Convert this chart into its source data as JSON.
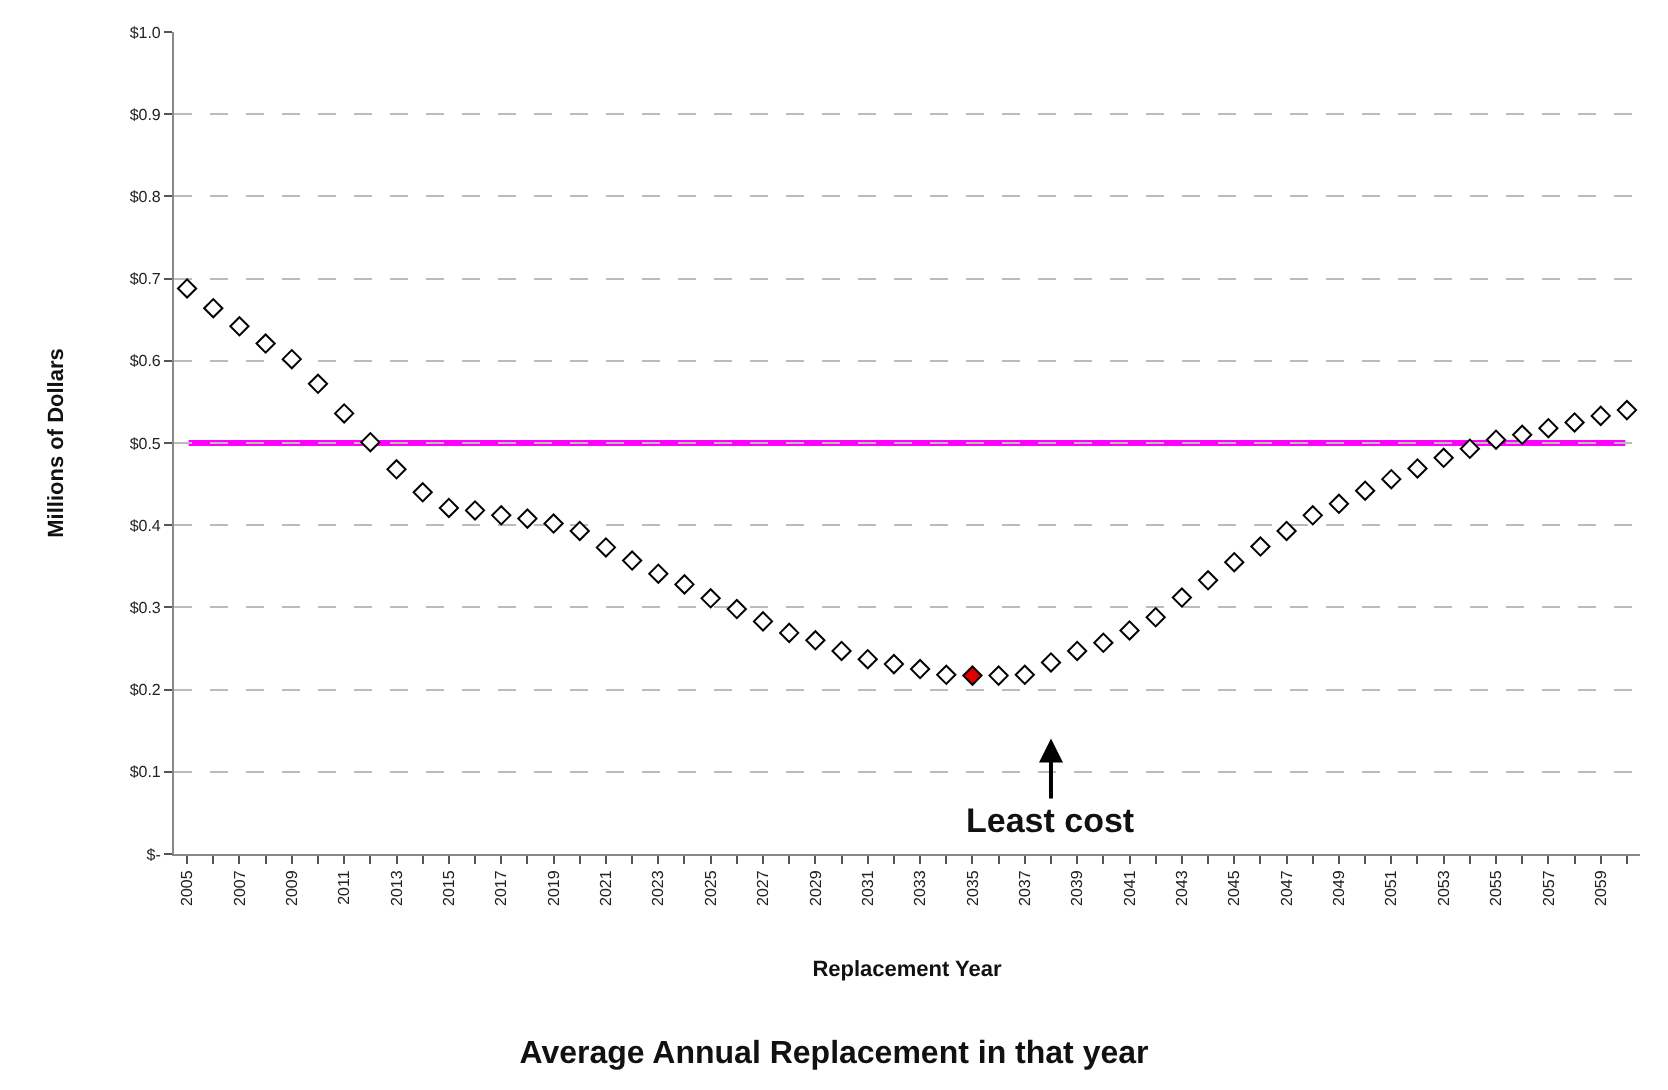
{
  "chart_data": {
    "type": "scatter",
    "title": "Average Annual Replacement in that year",
    "xlabel": "Replacement Year",
    "ylabel": "Millions of Dollars",
    "x": [
      2005,
      2006,
      2007,
      2008,
      2009,
      2010,
      2011,
      2012,
      2013,
      2014,
      2015,
      2016,
      2017,
      2018,
      2019,
      2020,
      2021,
      2022,
      2023,
      2024,
      2025,
      2026,
      2027,
      2028,
      2029,
      2030,
      2031,
      2032,
      2033,
      2034,
      2035,
      2036,
      2037,
      2038,
      2039,
      2040,
      2041,
      2042,
      2043,
      2044,
      2045,
      2046,
      2047,
      2048,
      2049,
      2050,
      2051,
      2052,
      2053,
      2054,
      2055,
      2056,
      2057,
      2058,
      2059,
      2060
    ],
    "series": [
      {
        "color": "#000000",
        "values": [
          0.688,
          0.664,
          0.642,
          0.621,
          0.602,
          0.572,
          0.536,
          0.501,
          0.468,
          0.44,
          0.421,
          0.418,
          0.412,
          0.408,
          0.402,
          0.393,
          0.373,
          0.357,
          0.341,
          0.328,
          0.311,
          0.298,
          0.283,
          0.269,
          0.26,
          0.247,
          0.237,
          0.231,
          0.225,
          0.218,
          0.217,
          0.217,
          0.218,
          0.233,
          0.247,
          0.257,
          0.272,
          0.288,
          0.312,
          0.333,
          0.355,
          0.374,
          0.393,
          0.412,
          0.426,
          0.442,
          0.456,
          0.469,
          0.482,
          0.493,
          0.504,
          0.51,
          0.518,
          0.525,
          0.533,
          0.54
        ],
        "colors": [
          "#ffffff",
          "#ffffff",
          "#ffffff",
          "#ffffff",
          "#ffffff",
          "#ffffff",
          "#ffffff",
          "#ffffff",
          "#ffffff",
          "#ffffff",
          "#ffffff",
          "#ffffff",
          "#ffffff",
          "#ffffff",
          "#ffffff",
          "#ffffff",
          "#ffffff",
          "#ffffff",
          "#ffffff",
          "#ffffff",
          "#ffffff",
          "#ffffff",
          "#ffffff",
          "#ffffff",
          "#ffffff",
          "#ffffff",
          "#ffffff",
          "#ffffff",
          "#ffffff",
          "#ffffff",
          "#e00000",
          "#ffffff",
          "#ffffff",
          "#ffffff",
          "#ffffff",
          "#ffffff",
          "#ffffff",
          "#ffffff",
          "#ffffff",
          "#ffffff",
          "#ffffff",
          "#ffffff",
          "#ffffff",
          "#ffffff",
          "#ffffff",
          "#ffffff",
          "#ffffff",
          "#ffffff",
          "#ffffff",
          "#ffffff",
          "#ffffff",
          "#ffffff",
          "#ffffff",
          "#ffffff",
          "#ffffff",
          "#ffffff"
        ]
      }
    ],
    "marker": "diamond",
    "ref_lines": [
      {
        "axis": "y",
        "value": 0.5,
        "color": "#ff00ff"
      }
    ],
    "annotations": [
      {
        "text": "Least cost",
        "x": 2038,
        "y": 0.233
      }
    ],
    "xlim": [
      2004.5,
      2060.5
    ],
    "xticks": [
      2005,
      {
        "value": 2006,
        "label": null
      },
      2007,
      {
        "value": 2008,
        "label": null
      },
      2009,
      {
        "value": 2010,
        "label": null
      },
      2011,
      {
        "value": 2012,
        "label": null
      },
      2013,
      {
        "value": 2014,
        "label": null
      },
      2015,
      {
        "value": 2016,
        "label": null
      },
      2017,
      {
        "value": 2018,
        "label": null
      },
      2019,
      {
        "value": 2020,
        "label": null
      },
      2021,
      {
        "value": 2022,
        "label": null
      },
      2023,
      {
        "value": 2024,
        "label": null
      },
      2025,
      {
        "value": 2026,
        "label": null
      },
      2027,
      {
        "value": 2028,
        "label": null
      },
      2029,
      {
        "value": 2030,
        "label": null
      },
      2031,
      {
        "value": 2032,
        "label": null
      },
      2033,
      {
        "value": 2034,
        "label": null
      },
      2035,
      {
        "value": 2036,
        "label": null
      },
      2037,
      {
        "value": 2038,
        "label": null
      },
      2039,
      {
        "value": 2040,
        "label": null
      },
      2041,
      {
        "value": 2042,
        "label": null
      },
      2043,
      {
        "value": 2044,
        "label": null
      },
      2045,
      {
        "value": 2046,
        "label": null
      },
      2047,
      {
        "value": 2048,
        "label": null
      },
      2049,
      {
        "value": 2050,
        "label": null
      },
      2051,
      {
        "value": 2052,
        "label": null
      },
      2053,
      {
        "value": 2054,
        "label": null
      },
      2055,
      {
        "value": 2056,
        "label": null
      },
      2057,
      {
        "value": 2058,
        "label": null
      },
      2059,
      {
        "value": 2060,
        "label": null
      }
    ],
    "ylim": [
      0,
      1.0
    ],
    "yticks": [
      {
        "value": 0,
        "label": "$-"
      },
      {
        "value": 0.1,
        "label": "$0.1"
      },
      {
        "value": 0.2,
        "label": "$0.2"
      },
      {
        "value": 0.3,
        "label": "$0.3"
      },
      {
        "value": 0.4,
        "label": "$0.4"
      },
      {
        "value": 0.5,
        "label": "$0.5"
      },
      {
        "value": 0.6,
        "label": "$0.6"
      },
      {
        "value": 0.7,
        "label": "$0.7"
      },
      {
        "value": 0.8,
        "label": "$0.8"
      },
      {
        "value": 0.9,
        "label": "$0.9"
      },
      {
        "value": 1.0,
        "label": "$1.0"
      }
    ],
    "grid": "y"
  }
}
